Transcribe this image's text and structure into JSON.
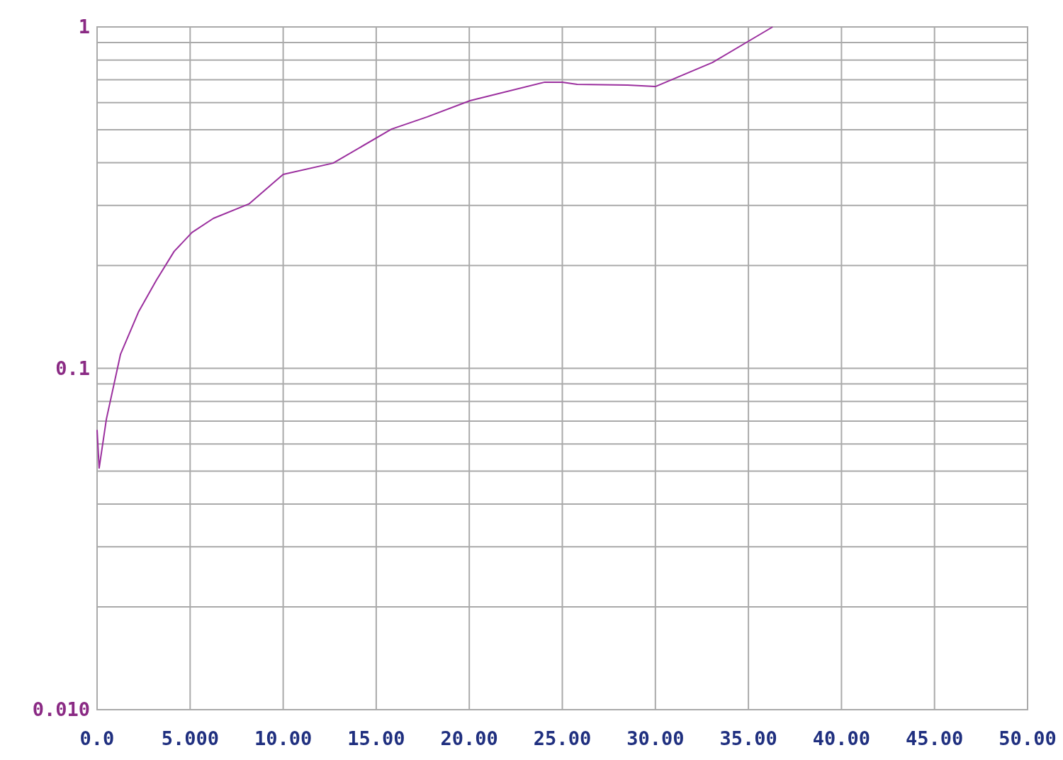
{
  "chart_data": {
    "type": "line",
    "log": "y",
    "grid": true,
    "marker": "none",
    "line_style": "solid",
    "xlim": [
      0,
      50
    ],
    "xticks": [
      {
        "value": 0,
        "label": "0.0"
      },
      {
        "value": 5,
        "label": "5.000"
      },
      {
        "value": 10,
        "label": "10.00"
      },
      {
        "value": 15,
        "label": "15.00"
      },
      {
        "value": 20,
        "label": "20.00"
      },
      {
        "value": 25,
        "label": "25.00"
      },
      {
        "value": 30,
        "label": "30.00"
      },
      {
        "value": 35,
        "label": "35.00"
      },
      {
        "value": 40,
        "label": "40.00"
      },
      {
        "value": 45,
        "label": "45.00"
      },
      {
        "value": 50,
        "label": "50.00"
      }
    ],
    "ylim": [
      0.01,
      1
    ],
    "yticks": [
      {
        "value": 0.01,
        "label": "0.010"
      },
      {
        "value": 0.02,
        "label": null
      },
      {
        "value": 0.03,
        "label": null
      },
      {
        "value": 0.04,
        "label": null
      },
      {
        "value": 0.05,
        "label": null
      },
      {
        "value": 0.06,
        "label": null
      },
      {
        "value": 0.07,
        "label": null
      },
      {
        "value": 0.08,
        "label": null
      },
      {
        "value": 0.09,
        "label": null
      },
      {
        "value": 0.1,
        "label": "0.1"
      },
      {
        "value": 0.2,
        "label": null
      },
      {
        "value": 0.3,
        "label": null
      },
      {
        "value": 0.4,
        "label": null
      },
      {
        "value": 0.5,
        "label": null
      },
      {
        "value": 0.6,
        "label": null
      },
      {
        "value": 0.7,
        "label": null
      },
      {
        "value": 0.8,
        "label": null
      },
      {
        "value": 0.9,
        "label": null
      },
      1
    ],
    "series": [
      {
        "color": "#9b2f9e",
        "x": [
          0,
          0.11,
          0.5,
          1.26,
          2.22,
          3.18,
          4.14,
          5.1,
          6.25,
          8.16,
          10.0,
          12.68,
          15.82,
          17.74,
          20.04,
          24.06,
          25.0,
          25.8,
          28.5,
          30.0,
          33.07,
          36.3
        ],
        "values": [
          0.066,
          0.051,
          0.071,
          0.11,
          0.146,
          0.181,
          0.22,
          0.25,
          0.275,
          0.303,
          0.37,
          0.399,
          0.502,
          0.545,
          0.608,
          0.689,
          0.689,
          0.679,
          0.676,
          0.669,
          0.787,
          1.0
        ]
      }
    ]
  }
}
